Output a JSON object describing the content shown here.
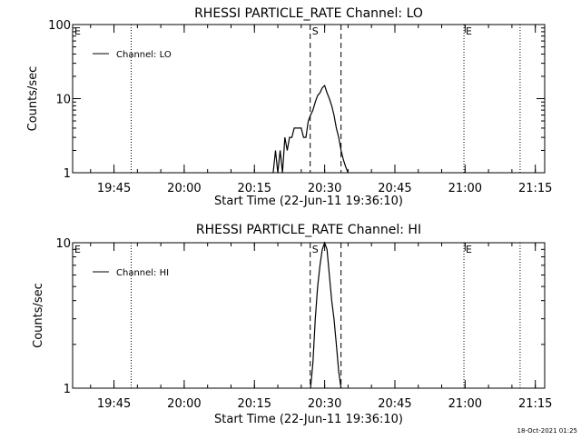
{
  "footer": {
    "timestamp": "18-Oct-2021 01:25"
  },
  "chart_data": [
    {
      "type": "line",
      "title": "RHESSI PARTICLE_RATE Channel: LO",
      "xlabel": "Start Time (22-Jun-11 19:36:10)",
      "ylabel": "Counts/sec",
      "yscale": "log",
      "xlim": [
        "19:36:10",
        "21:17:00"
      ],
      "ylim": [
        1,
        100
      ],
      "x_ticks": [
        "19:45",
        "20:00",
        "20:15",
        "20:30",
        "20:45",
        "21:00",
        "21:15"
      ],
      "y_ticks": [
        "1",
        "10",
        "100"
      ],
      "legend": {
        "position": "top-left",
        "entries": [
          "Channel: LO"
        ]
      },
      "markers": [
        {
          "label": "E",
          "time": "19:36:10",
          "style": "none"
        },
        {
          "label": "",
          "time": "19:48:40",
          "style": "dotted"
        },
        {
          "label": "S",
          "time": "20:26:55",
          "style": "dashed"
        },
        {
          "label": "",
          "time": "20:33:30",
          "style": "dashed"
        },
        {
          "label": "E",
          "time": "20:59:45",
          "style": "dotted"
        },
        {
          "label": "",
          "time": "21:11:45",
          "style": "dotted"
        }
      ],
      "series": [
        {
          "name": "Channel: LO",
          "x": [
            "20:19:00",
            "20:19:30",
            "20:20:00",
            "20:20:30",
            "20:21:00",
            "20:21:30",
            "20:22:00",
            "20:22:30",
            "20:23:00",
            "20:23:30",
            "20:24:00",
            "20:24:30",
            "20:25:00",
            "20:25:30",
            "20:26:00",
            "20:26:30",
            "20:27:00",
            "20:27:30",
            "20:28:00",
            "20:28:30",
            "20:29:00",
            "20:29:30",
            "20:30:00",
            "20:30:30",
            "20:31:00",
            "20:31:30",
            "20:32:00",
            "20:32:30",
            "20:33:00",
            "20:33:30",
            "20:34:00",
            "20:34:30",
            "20:35:00"
          ],
          "values": [
            1,
            2,
            1,
            2,
            1,
            3,
            2,
            3,
            3,
            4,
            4,
            4,
            4,
            3,
            3,
            5,
            6,
            7,
            9,
            11,
            12,
            14,
            15,
            12,
            10,
            8,
            6,
            4,
            3,
            2,
            1.5,
            1.2,
            1
          ]
        }
      ]
    },
    {
      "type": "line",
      "title": "RHESSI PARTICLE_RATE Channel: HI",
      "xlabel": "Start Time (22-Jun-11 19:36:10)",
      "ylabel": "Counts/sec",
      "yscale": "log",
      "xlim": [
        "19:36:10",
        "21:17:00"
      ],
      "ylim": [
        1,
        10
      ],
      "x_ticks": [
        "19:45",
        "20:00",
        "20:15",
        "20:30",
        "20:45",
        "21:00",
        "21:15"
      ],
      "y_ticks": [
        "1",
        "10"
      ],
      "legend": {
        "position": "top-left",
        "entries": [
          "Channel: HI"
        ]
      },
      "markers": [
        {
          "label": "E",
          "time": "19:36:10",
          "style": "none"
        },
        {
          "label": "",
          "time": "19:48:40",
          "style": "dotted"
        },
        {
          "label": "S",
          "time": "20:26:55",
          "style": "dashed"
        },
        {
          "label": "",
          "time": "20:33:30",
          "style": "dashed"
        },
        {
          "label": "E",
          "time": "20:59:45",
          "style": "dotted"
        },
        {
          "label": "",
          "time": "21:11:45",
          "style": "dotted"
        }
      ],
      "series": [
        {
          "name": "Channel: HI",
          "x": [
            "20:27:00",
            "20:27:30",
            "20:28:00",
            "20:28:30",
            "20:29:00",
            "20:29:30",
            "20:30:00",
            "20:30:30",
            "20:31:00",
            "20:31:30",
            "20:32:00",
            "20:32:30",
            "20:33:00",
            "20:33:30"
          ],
          "values": [
            1,
            1.5,
            3,
            5,
            7,
            9,
            10,
            9,
            6,
            4,
            3,
            2,
            1.3,
            1
          ]
        }
      ]
    }
  ]
}
